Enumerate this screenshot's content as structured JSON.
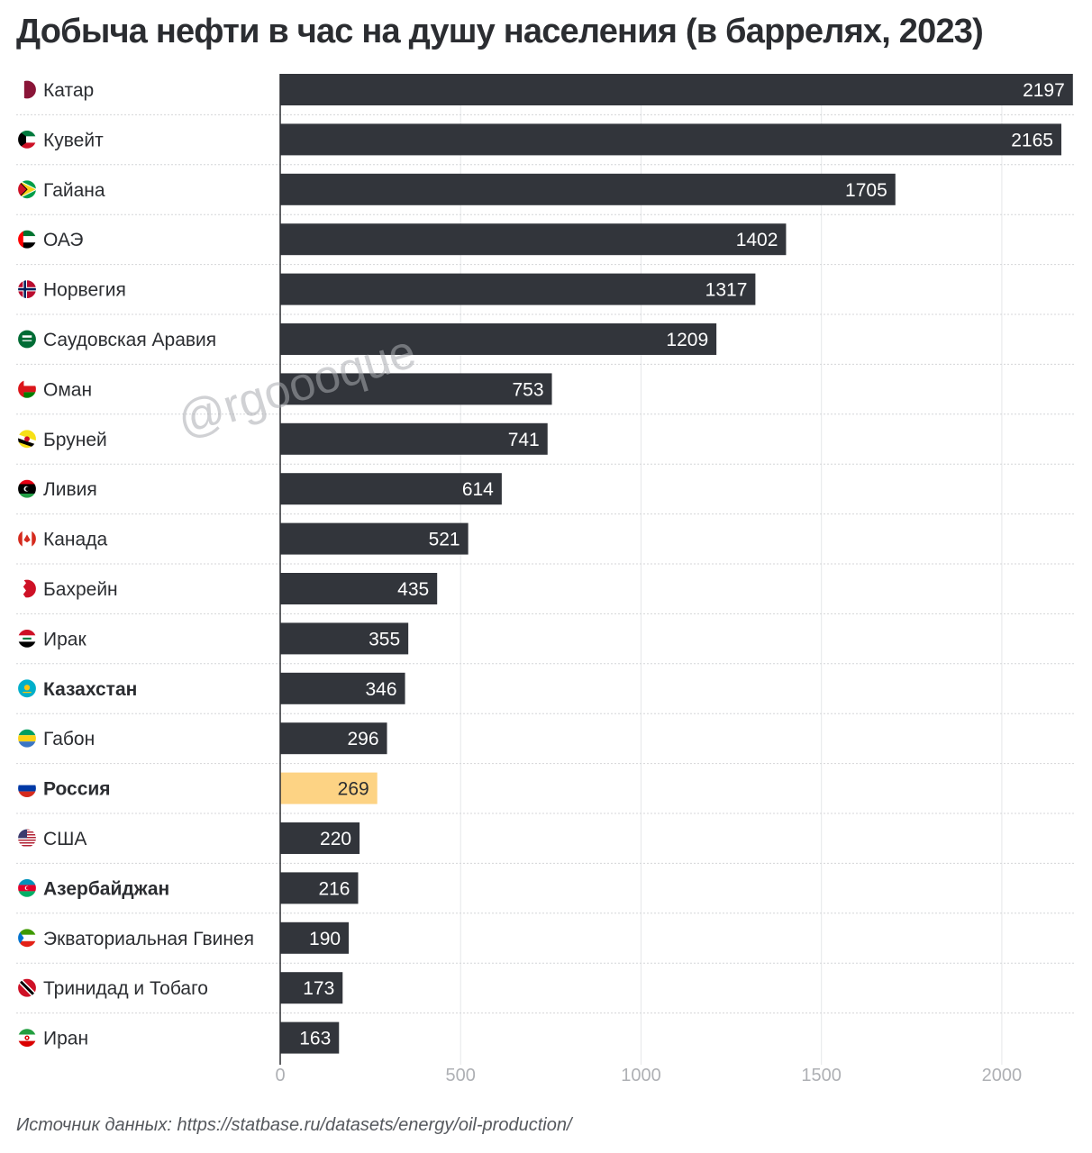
{
  "chart_data": {
    "type": "bar",
    "orientation": "horizontal",
    "title": "Добыча нефти в час на душу населения (в баррелях, 2023)",
    "categories": [
      "Катар",
      "Кувейт",
      "Гайана",
      "ОАЭ",
      "Норвегия",
      "Саудовская Аравия",
      "Оман",
      "Бруней",
      "Ливия",
      "Канада",
      "Бахрейн",
      "Ирак",
      "Казахстан",
      "Габон",
      "Россия",
      "США",
      "Азербайджан",
      "Экваториальная Гвинея",
      "Тринидад и Тобаго",
      "Иран"
    ],
    "values": [
      2197,
      2165,
      1705,
      1402,
      1317,
      1209,
      753,
      741,
      614,
      521,
      435,
      355,
      346,
      296,
      269,
      220,
      216,
      190,
      173,
      163
    ],
    "highlighted_category": "Россия",
    "bold_categories": [
      "Казахстан",
      "Россия",
      "Азербайджан"
    ],
    "xlim": [
      0,
      2200
    ],
    "x_ticks": [
      0,
      500,
      1000,
      1500,
      2000
    ],
    "grid": true,
    "bar_color": "#32353b",
    "highlight_color": "#fdd384"
  },
  "flag_icons": [
    "qatar-flag-icon",
    "kuwait-flag-icon",
    "guyana-flag-icon",
    "uae-flag-icon",
    "norway-flag-icon",
    "saudi-arabia-flag-icon",
    "oman-flag-icon",
    "brunei-flag-icon",
    "libya-flag-icon",
    "canada-flag-icon",
    "bahrain-flag-icon",
    "iraq-flag-icon",
    "kazakhstan-flag-icon",
    "gabon-flag-icon",
    "russia-flag-icon",
    "usa-flag-icon",
    "azerbaijan-flag-icon",
    "equatorial-guinea-flag-icon",
    "trinidad-and-tobago-flag-icon",
    "iran-flag-icon"
  ],
  "watermark": "@rgoooque",
  "source": "Источник данных: https://statbase.ru/datasets/energy/oil-production/"
}
